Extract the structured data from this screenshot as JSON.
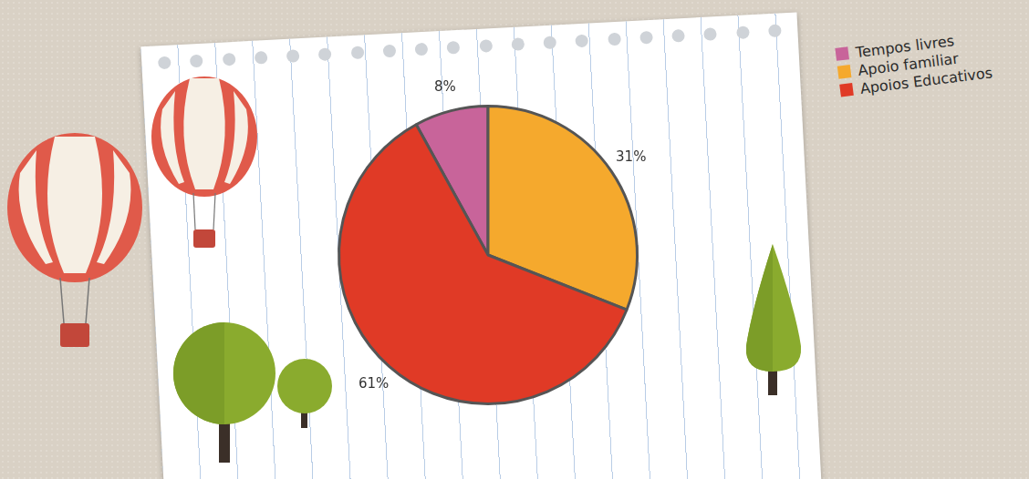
{
  "chart_data": {
    "type": "pie",
    "categories": [
      "Tempos livres",
      "Apoio familiar",
      "Apoios Educativos"
    ],
    "values": [
      8,
      31,
      61
    ],
    "value_labels": [
      "8%",
      "31%",
      "61%"
    ],
    "colors": [
      "#c8649a",
      "#f5a92d",
      "#e03a26"
    ],
    "data_labels": true,
    "legend": "right"
  }
}
